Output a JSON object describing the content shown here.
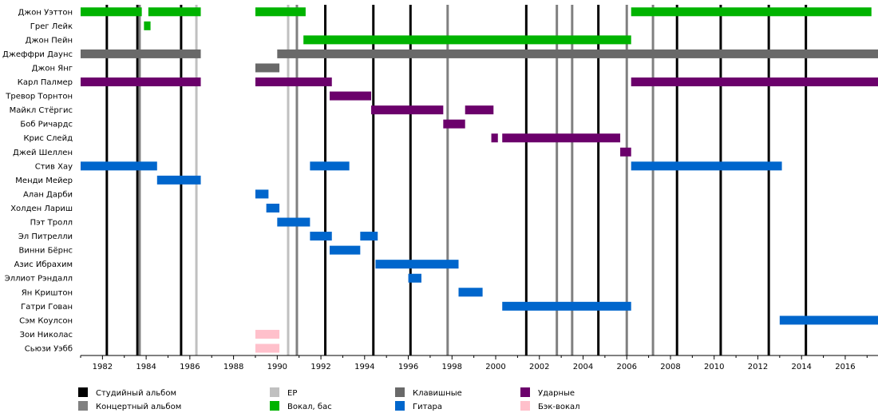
{
  "chart_data": {
    "type": "timeline",
    "xlim": [
      1981,
      2017.5
    ],
    "ticks": [
      1982,
      1984,
      1986,
      1988,
      1990,
      1992,
      1994,
      1996,
      1998,
      2000,
      2002,
      2004,
      2006,
      2008,
      2010,
      2012,
      2014,
      2016
    ],
    "members": [
      "Джон Уэттон",
      "Грег Лейк",
      "Джон Пейн",
      "Джеффри Даунс",
      "Джон Янг",
      "Карл Палмер",
      "Тревор Торнтон",
      "Майкл Стёргис",
      "Боб Ричардс",
      "Крис Слейд",
      "Джей Шеллен",
      "Стив Хау",
      "Менди Мейер",
      "Алан Дарби",
      "Холден Лариш",
      "Пэт Тролл",
      "Эл Питрелли",
      "Винни Бёрнс",
      "Азис Ибрахим",
      "Эллиот Рэндалл",
      "Ян Криштон",
      "Гатри Гован",
      "Сэм Коулсон",
      "Зои Николас",
      "Сьюзи Уэбб"
    ],
    "roles": {
      "studio": {
        "label": "Студийный альбом",
        "color": "#000000"
      },
      "live": {
        "label": "Концертный альбом",
        "color": "#808080"
      },
      "ep": {
        "label": "EP",
        "color": "#c0c0c0"
      },
      "vocals": {
        "label": "Вокал, бас",
        "color": "#00b300"
      },
      "keys": {
        "label": "Клавишные",
        "color": "#696969"
      },
      "guitar": {
        "label": "Гитара",
        "color": "#0066cc"
      },
      "drums": {
        "label": "Ударные",
        "color": "#6b006b"
      },
      "backing": {
        "label": "Бэк-вокал",
        "color": "#ffc0cb"
      }
    },
    "bars": [
      {
        "member": 0,
        "role": "vocals",
        "start": 1981.0,
        "end": 1983.8
      },
      {
        "member": 0,
        "role": "vocals",
        "start": 1984.1,
        "end": 1986.5
      },
      {
        "member": 0,
        "role": "vocals",
        "start": 1989.0,
        "end": 1991.3
      },
      {
        "member": 0,
        "role": "vocals",
        "start": 2006.2,
        "end": 2017.2
      },
      {
        "member": 1,
        "role": "vocals",
        "start": 1983.9,
        "end": 1984.2
      },
      {
        "member": 2,
        "role": "vocals",
        "start": 1991.2,
        "end": 2006.2
      },
      {
        "member": 3,
        "role": "keys",
        "start": 1981.0,
        "end": 1986.5
      },
      {
        "member": 3,
        "role": "keys",
        "start": 1990.0,
        "end": 2017.5
      },
      {
        "member": 4,
        "role": "keys",
        "start": 1989.0,
        "end": 1990.1
      },
      {
        "member": 5,
        "role": "drums",
        "start": 1981.0,
        "end": 1986.5
      },
      {
        "member": 5,
        "role": "drums",
        "start": 1989.0,
        "end": 1992.5
      },
      {
        "member": 5,
        "role": "drums",
        "start": 2006.2,
        "end": 2017.5
      },
      {
        "member": 6,
        "role": "drums",
        "start": 1992.4,
        "end": 1994.3
      },
      {
        "member": 7,
        "role": "drums",
        "start": 1994.3,
        "end": 1997.6
      },
      {
        "member": 7,
        "role": "drums",
        "start": 1998.6,
        "end": 1999.9
      },
      {
        "member": 8,
        "role": "drums",
        "start": 1997.6,
        "end": 1998.6
      },
      {
        "member": 9,
        "role": "drums",
        "start": 1999.8,
        "end": 2000.1
      },
      {
        "member": 9,
        "role": "drums",
        "start": 2000.3,
        "end": 2005.7
      },
      {
        "member": 10,
        "role": "drums",
        "start": 2005.7,
        "end": 2006.2
      },
      {
        "member": 11,
        "role": "guitar",
        "start": 1981.0,
        "end": 1984.5
      },
      {
        "member": 11,
        "role": "guitar",
        "start": 1991.5,
        "end": 1993.3
      },
      {
        "member": 11,
        "role": "guitar",
        "start": 2006.2,
        "end": 2013.1
      },
      {
        "member": 12,
        "role": "guitar",
        "start": 1984.5,
        "end": 1986.5
      },
      {
        "member": 13,
        "role": "guitar",
        "start": 1989.0,
        "end": 1989.6
      },
      {
        "member": 14,
        "role": "guitar",
        "start": 1989.5,
        "end": 1990.1
      },
      {
        "member": 15,
        "role": "guitar",
        "start": 1990.0,
        "end": 1991.5
      },
      {
        "member": 16,
        "role": "guitar",
        "start": 1991.5,
        "end": 1992.5
      },
      {
        "member": 16,
        "role": "guitar",
        "start": 1993.8,
        "end": 1994.6
      },
      {
        "member": 17,
        "role": "guitar",
        "start": 1992.4,
        "end": 1993.8
      },
      {
        "member": 18,
        "role": "guitar",
        "start": 1994.5,
        "end": 1998.3
      },
      {
        "member": 19,
        "role": "guitar",
        "start": 1996.0,
        "end": 1996.6
      },
      {
        "member": 20,
        "role": "guitar",
        "start": 1998.3,
        "end": 1999.4
      },
      {
        "member": 21,
        "role": "guitar",
        "start": 2000.3,
        "end": 2006.2
      },
      {
        "member": 22,
        "role": "guitar",
        "start": 2013.0,
        "end": 2017.5
      },
      {
        "member": 23,
        "role": "backing",
        "start": 1989.0,
        "end": 1990.1
      },
      {
        "member": 24,
        "role": "backing",
        "start": 1989.0,
        "end": 1990.1
      }
    ],
    "events": [
      {
        "year": 1982.2,
        "role": "studio"
      },
      {
        "year": 1983.6,
        "role": "studio"
      },
      {
        "year": 1985.6,
        "role": "studio"
      },
      {
        "year": 1992.2,
        "role": "studio"
      },
      {
        "year": 1994.4,
        "role": "studio"
      },
      {
        "year": 1996.1,
        "role": "studio"
      },
      {
        "year": 2001.4,
        "role": "studio"
      },
      {
        "year": 2004.7,
        "role": "studio"
      },
      {
        "year": 2008.3,
        "role": "studio"
      },
      {
        "year": 2010.3,
        "role": "studio"
      },
      {
        "year": 2012.5,
        "role": "studio"
      },
      {
        "year": 2014.2,
        "role": "studio"
      },
      {
        "year": 1983.7,
        "role": "live"
      },
      {
        "year": 1990.9,
        "role": "live"
      },
      {
        "year": 1997.8,
        "role": "live"
      },
      {
        "year": 2002.8,
        "role": "live"
      },
      {
        "year": 2003.5,
        "role": "live"
      },
      {
        "year": 2006.0,
        "role": "live"
      },
      {
        "year": 2007.2,
        "role": "live"
      },
      {
        "year": 1986.3,
        "role": "ep"
      },
      {
        "year": 1990.5,
        "role": "ep"
      }
    ],
    "legend": [
      {
        "role": "studio",
        "label": "Студийный альбом"
      },
      {
        "role": "live",
        "label": "Концертный альбом"
      },
      {
        "role": "ep",
        "label": "EP"
      },
      {
        "role": "vocals",
        "label": "Вокал, бас"
      },
      {
        "role": "keys",
        "label": "Клавишные"
      },
      {
        "role": "guitar",
        "label": "Гитара"
      },
      {
        "role": "drums",
        "label": "Ударные"
      },
      {
        "role": "backing",
        "label": "Бэк-вокал"
      }
    ]
  }
}
